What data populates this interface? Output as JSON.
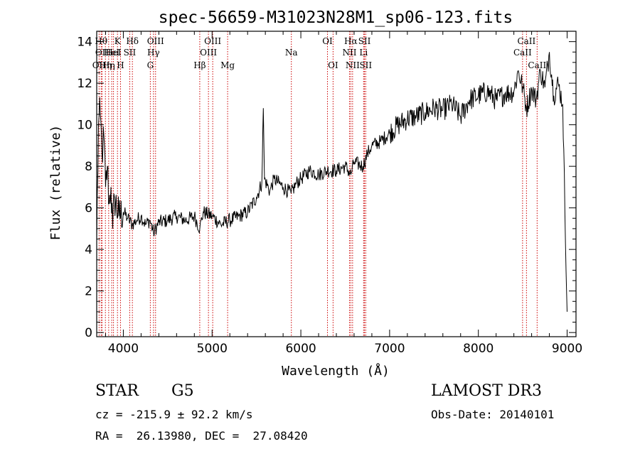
{
  "chart_data": {
    "type": "line",
    "title": "spec-56659-M31023N28M1_sp06-123.fits",
    "xlabel": "Wavelength (Å)",
    "ylabel": "Flux (relative)",
    "xlim": [
      3700,
      9100
    ],
    "ylim": [
      -0.2,
      14.5
    ],
    "x_ticks": [
      4000,
      5000,
      6000,
      7000,
      8000,
      9000
    ],
    "y_ticks": [
      0,
      2,
      4,
      6,
      8,
      10,
      12,
      14
    ],
    "x_minor_step": 200,
    "y_minor_step": 0.5,
    "series": [
      {
        "name": "spectrum",
        "x": [
          3700,
          3720,
          3740,
          3760,
          3780,
          3800,
          3820,
          3840,
          3860,
          3880,
          3900,
          3950,
          4000,
          4050,
          4100,
          4150,
          4200,
          4250,
          4300,
          4340,
          4400,
          4500,
          4600,
          4700,
          4800,
          4862,
          4900,
          5000,
          5100,
          5200,
          5300,
          5400,
          5500,
          5560,
          5577,
          5590,
          5650,
          5700,
          5800,
          5890,
          5950,
          6000,
          6100,
          6200,
          6300,
          6400,
          6500,
          6563,
          6600,
          6700,
          6750,
          6800,
          6900,
          7000,
          7100,
          7200,
          7300,
          7400,
          7500,
          7600,
          7700,
          7800,
          7900,
          8000,
          8100,
          8200,
          8300,
          8400,
          8450,
          8500,
          8542,
          8600,
          8650,
          8700,
          8750,
          8800,
          8850,
          8900,
          8950,
          9000
        ],
        "y": [
          4.5,
          10.0,
          10.5,
          8.5,
          9.5,
          7.0,
          8.0,
          6.2,
          7.0,
          5.0,
          6.5,
          5.6,
          5.8,
          5.5,
          5.2,
          5.4,
          5.6,
          5.2,
          5.4,
          4.8,
          5.3,
          5.4,
          5.6,
          5.4,
          5.6,
          5.0,
          5.8,
          5.6,
          5.2,
          5.4,
          5.6,
          5.8,
          6.5,
          7.2,
          10.8,
          7.4,
          6.8,
          7.4,
          7.0,
          6.7,
          7.2,
          7.4,
          7.8,
          7.6,
          7.8,
          7.8,
          8.0,
          7.6,
          8.2,
          8.0,
          8.6,
          9.0,
          9.2,
          9.6,
          10.0,
          10.3,
          10.4,
          10.6,
          10.8,
          10.7,
          11.0,
          10.4,
          11.2,
          11.4,
          11.6,
          11.2,
          11.5,
          11.6,
          12.6,
          11.8,
          10.8,
          11.7,
          11.2,
          12.6,
          11.8,
          13.5,
          11.4,
          12.0,
          11.0,
          1.0
        ]
      }
    ],
    "lines": [
      {
        "wl": 3727,
        "label": "OII",
        "row": 3
      },
      {
        "wl": 3750,
        "label": "Hθ",
        "row": 1
      },
      {
        "wl": 3760,
        "label": "OII",
        "row": 2
      },
      {
        "wl": 3798,
        "label": "Hη",
        "row": 3
      },
      {
        "wl": 3835,
        "label": "Hη",
        "row": 3
      },
      {
        "wl": 3869,
        "label": "HeI",
        "row": 2
      },
      {
        "wl": 3889,
        "label": "HeI",
        "row": 2
      },
      {
        "wl": 3934,
        "label": "K",
        "row": 1
      },
      {
        "wl": 3968,
        "label": "H",
        "row": 3
      },
      {
        "wl": 4072,
        "label": "SII",
        "row": 2
      },
      {
        "wl": 4102,
        "label": "Hδ",
        "row": 1
      },
      {
        "wl": 4304,
        "label": "G",
        "row": 3
      },
      {
        "wl": 4340,
        "label": "Hγ",
        "row": 2
      },
      {
        "wl": 4363,
        "label": "OIII",
        "row": 1
      },
      {
        "wl": 4861,
        "label": "Hβ",
        "row": 3
      },
      {
        "wl": 4959,
        "label": "OIII",
        "row": 2
      },
      {
        "wl": 5007,
        "label": "OIII",
        "row": 1
      },
      {
        "wl": 5175,
        "label": "Mg",
        "row": 3
      },
      {
        "wl": 5893,
        "label": "Na",
        "row": 2
      },
      {
        "wl": 6300,
        "label": "OI",
        "row": 1
      },
      {
        "wl": 6363,
        "label": "OI",
        "row": 3
      },
      {
        "wl": 6548,
        "label": "NII",
        "row": 2
      },
      {
        "wl": 6563,
        "label": "Hα",
        "row": 1
      },
      {
        "wl": 6583,
        "label": "NII",
        "row": 3
      },
      {
        "wl": 6707,
        "label": "Li",
        "row": 2
      },
      {
        "wl": 6717,
        "label": "SII",
        "row": 1
      },
      {
        "wl": 6731,
        "label": "SII",
        "row": 3
      },
      {
        "wl": 8498,
        "label": "CaII",
        "row": 2
      },
      {
        "wl": 8542,
        "label": "CaII",
        "row": 1
      },
      {
        "wl": 8662,
        "label": "CaII",
        "row": 3
      }
    ],
    "line_color": "#cc0000",
    "spectrum_color": "#000000"
  },
  "info": {
    "object_class": "STAR",
    "subclass": "G5",
    "survey": "LAMOST DR3",
    "cz": "cz = -215.9 ± 92.2 km/s",
    "obs_date": "Obs-Date: 20140101",
    "coords": "RA =  26.13980, DEC =  27.08420"
  }
}
